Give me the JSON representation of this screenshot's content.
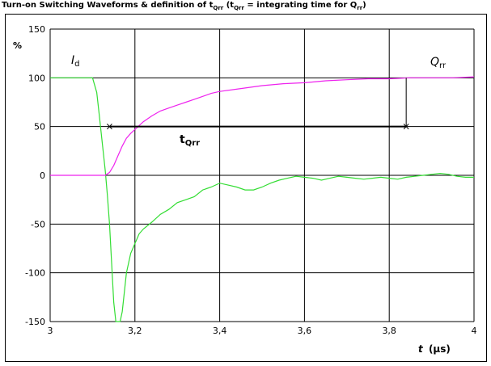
{
  "chart_data": {
    "type": "line",
    "title_prefix": "Turn-on Switching Waveforms & definition of t",
    "title_sub1": "Qrr",
    "title_mid": " (t",
    "title_sub2": "Qrr",
    "title_mid2": " = integrating time for Q",
    "title_sub3": "rr",
    "title_suffix": ")",
    "ylabel": "%",
    "xlabel_italic": "t",
    "xlabel_unit": "(µs)",
    "xlim": [
      3,
      4
    ],
    "ylim": [
      -150,
      150
    ],
    "x_ticks": [
      3,
      3.2,
      3.4,
      3.6,
      3.8,
      4
    ],
    "x_tick_labels": [
      "3",
      "3,2",
      "3,4",
      "3,6",
      "3,8",
      "4"
    ],
    "y_ticks": [
      -150,
      -100,
      -50,
      0,
      50,
      100,
      150
    ],
    "y_tick_labels": [
      "-150",
      "-100",
      "-50",
      "0",
      "50",
      "100",
      "150"
    ],
    "grid": true,
    "series": [
      {
        "name": "Id",
        "label_main": "I",
        "label_sub": "d",
        "color": "#33dd33",
        "x": [
          3.0,
          3.02,
          3.04,
          3.06,
          3.08,
          3.1,
          3.11,
          3.115,
          3.12,
          3.125,
          3.13,
          3.135,
          3.14,
          3.145,
          3.15,
          3.155,
          3.16,
          3.165,
          3.17,
          3.175,
          3.18,
          3.19,
          3.2,
          3.21,
          3.22,
          3.24,
          3.26,
          3.28,
          3.3,
          3.32,
          3.34,
          3.36,
          3.38,
          3.4,
          3.42,
          3.44,
          3.46,
          3.48,
          3.5,
          3.52,
          3.54,
          3.56,
          3.58,
          3.6,
          3.62,
          3.64,
          3.66,
          3.68,
          3.7,
          3.72,
          3.74,
          3.76,
          3.78,
          3.8,
          3.82,
          3.84,
          3.86,
          3.88,
          3.9,
          3.92,
          3.94,
          3.96,
          3.98,
          4.0
        ],
        "y": [
          100,
          100,
          100,
          100,
          100,
          100,
          85,
          65,
          45,
          25,
          5,
          -20,
          -50,
          -90,
          -130,
          -150,
          -150,
          -150,
          -140,
          -120,
          -100,
          -80,
          -70,
          -60,
          -55,
          -48,
          -40,
          -35,
          -28,
          -25,
          -22,
          -15,
          -12,
          -8,
          -10,
          -12,
          -15,
          -15,
          -12,
          -8,
          -5,
          -3,
          -1,
          -2,
          -3,
          -5,
          -3,
          -1,
          -2,
          -3,
          -4,
          -3,
          -2,
          -3,
          -4,
          -2,
          -1,
          0,
          1,
          2,
          1,
          -1,
          -2,
          -2
        ]
      },
      {
        "name": "Qrr",
        "label_main": "Q",
        "label_sub": "rr",
        "color": "#ee22ee",
        "x": [
          3.0,
          3.05,
          3.1,
          3.13,
          3.14,
          3.15,
          3.16,
          3.17,
          3.18,
          3.19,
          3.2,
          3.22,
          3.24,
          3.26,
          3.28,
          3.3,
          3.32,
          3.34,
          3.36,
          3.38,
          3.4,
          3.45,
          3.5,
          3.55,
          3.6,
          3.65,
          3.7,
          3.75,
          3.8,
          3.85,
          3.9,
          3.95,
          4.0
        ],
        "y": [
          0,
          0,
          0,
          0,
          3,
          10,
          20,
          30,
          38,
          43,
          47,
          55,
          61,
          66,
          69,
          72,
          75,
          78,
          81,
          84,
          86,
          89,
          92,
          94,
          95,
          97,
          98,
          99,
          99,
          100,
          100,
          100,
          101
        ]
      }
    ],
    "annotation": {
      "label_main": "t",
      "label_sub": "Qrr",
      "level": 50,
      "x_start": 3.14,
      "x_end": 3.84,
      "marker": "×"
    }
  }
}
